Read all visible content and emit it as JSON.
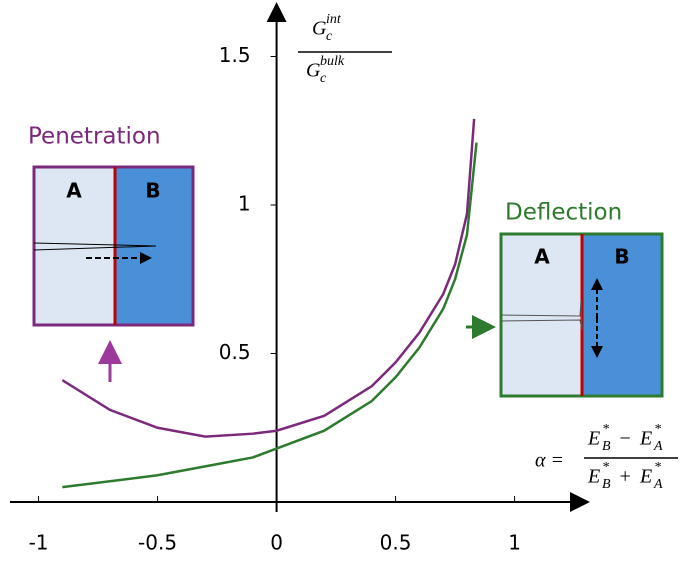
{
  "chart_data": {
    "type": "line",
    "y_label": {
      "numerator": {
        "base": "G",
        "sub": "c",
        "sup": "int"
      },
      "denominator": {
        "base": "G",
        "sub": "c",
        "sup": "bulk"
      }
    },
    "x_label": {
      "lhs": "α =",
      "numerator": {
        "left": {
          "base": "E",
          "sub": "B",
          "sup": "*"
        },
        "op": "−",
        "right": {
          "base": "E",
          "sub": "A",
          "sup": "*"
        }
      },
      "denominator": {
        "left": {
          "base": "E",
          "sub": "B",
          "sup": "*"
        },
        "op": "+",
        "right": {
          "base": "E",
          "sub": "A",
          "sup": "*"
        }
      }
    },
    "xlim": [
      -1.12,
      1.3
    ],
    "ylim": [
      0,
      1.67
    ],
    "xticks": [
      -1,
      -0.5,
      0,
      0.5,
      1
    ],
    "yticks": [
      0.5,
      1,
      1.5
    ],
    "series": [
      {
        "color": "#7b2a7b",
        "x": [
          -0.9,
          -0.7,
          -0.5,
          -0.3,
          -0.1,
          0,
          0.2,
          0.4,
          0.5,
          0.6,
          0.7,
          0.75,
          0.8,
          0.83
        ],
        "values": [
          0.41,
          0.31,
          0.25,
          0.22,
          0.23,
          0.24,
          0.29,
          0.39,
          0.47,
          0.57,
          0.7,
          0.8,
          0.97,
          1.29
        ]
      },
      {
        "color": "#2e7a2e",
        "x": [
          -0.9,
          -0.7,
          -0.5,
          -0.3,
          -0.1,
          0,
          0.2,
          0.4,
          0.5,
          0.6,
          0.7,
          0.75,
          0.8,
          0.84
        ],
        "values": [
          0.05,
          0.07,
          0.09,
          0.12,
          0.15,
          0.18,
          0.24,
          0.34,
          0.42,
          0.52,
          0.65,
          0.75,
          0.9,
          1.21
        ]
      }
    ],
    "annotations": {
      "penetration": {
        "title": "Penetration",
        "left": "A",
        "right": "B"
      },
      "deflection": {
        "title": "Deflection",
        "left": "A",
        "right": "B"
      }
    }
  }
}
